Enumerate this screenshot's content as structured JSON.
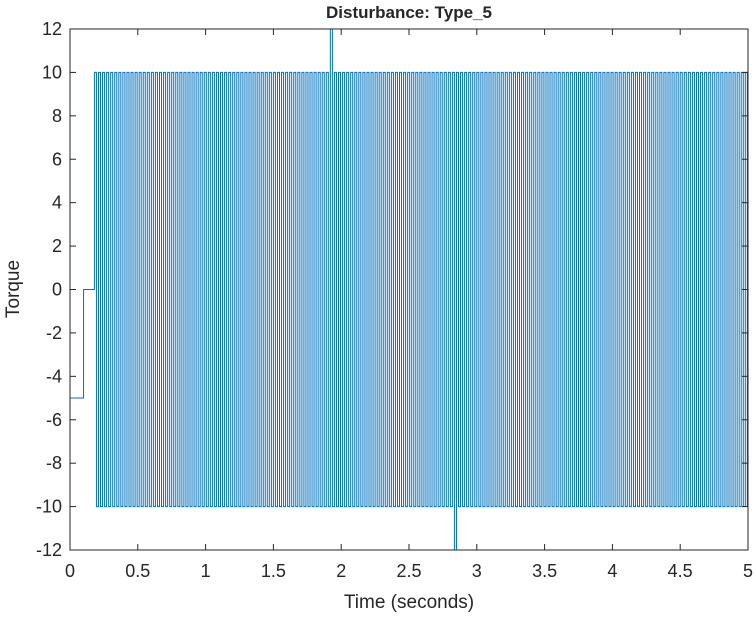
{
  "chart_data": {
    "type": "line",
    "title": "Disturbance: Type_5",
    "xlabel": "Time (seconds)",
    "ylabel": "Torque",
    "xlim": [
      0,
      5
    ],
    "ylim": [
      -12,
      12
    ],
    "xticks": [
      0,
      0.5,
      1,
      1.5,
      2,
      2.5,
      3,
      3.5,
      4,
      4.5,
      5
    ],
    "xtick_labels": [
      "0",
      "0.5",
      "1",
      "1.5",
      "2",
      "2.5",
      "3",
      "3.5",
      "4",
      "4.5",
      "5"
    ],
    "yticks": [
      -12,
      -10,
      -8,
      -6,
      -4,
      -2,
      0,
      2,
      4,
      6,
      8,
      10,
      12
    ],
    "ytick_labels": [
      "-12",
      "-10",
      "-8",
      "-6",
      "-4",
      "-2",
      "0",
      "2",
      "4",
      "6",
      "8",
      "10",
      "12"
    ],
    "grid": false,
    "line_color": "#0072BD",
    "series": [
      {
        "segments": [
          {
            "x_start": 0.0,
            "x_end": 0.1,
            "value": -5
          },
          {
            "x_start": 0.1,
            "x_end": 0.18,
            "value": 0
          },
          {
            "x_start": 0.18,
            "x_end": 5.0,
            "value": "square wave alternating between 10 and -10",
            "high": 10,
            "low": -10,
            "period": 0.03
          },
          {
            "x_start": 1.92,
            "x_end": 1.94,
            "value": 12,
            "note": "spike"
          },
          {
            "x_start": 2.84,
            "x_end": 2.86,
            "value": -12,
            "note": "spike"
          }
        ]
      }
    ]
  }
}
